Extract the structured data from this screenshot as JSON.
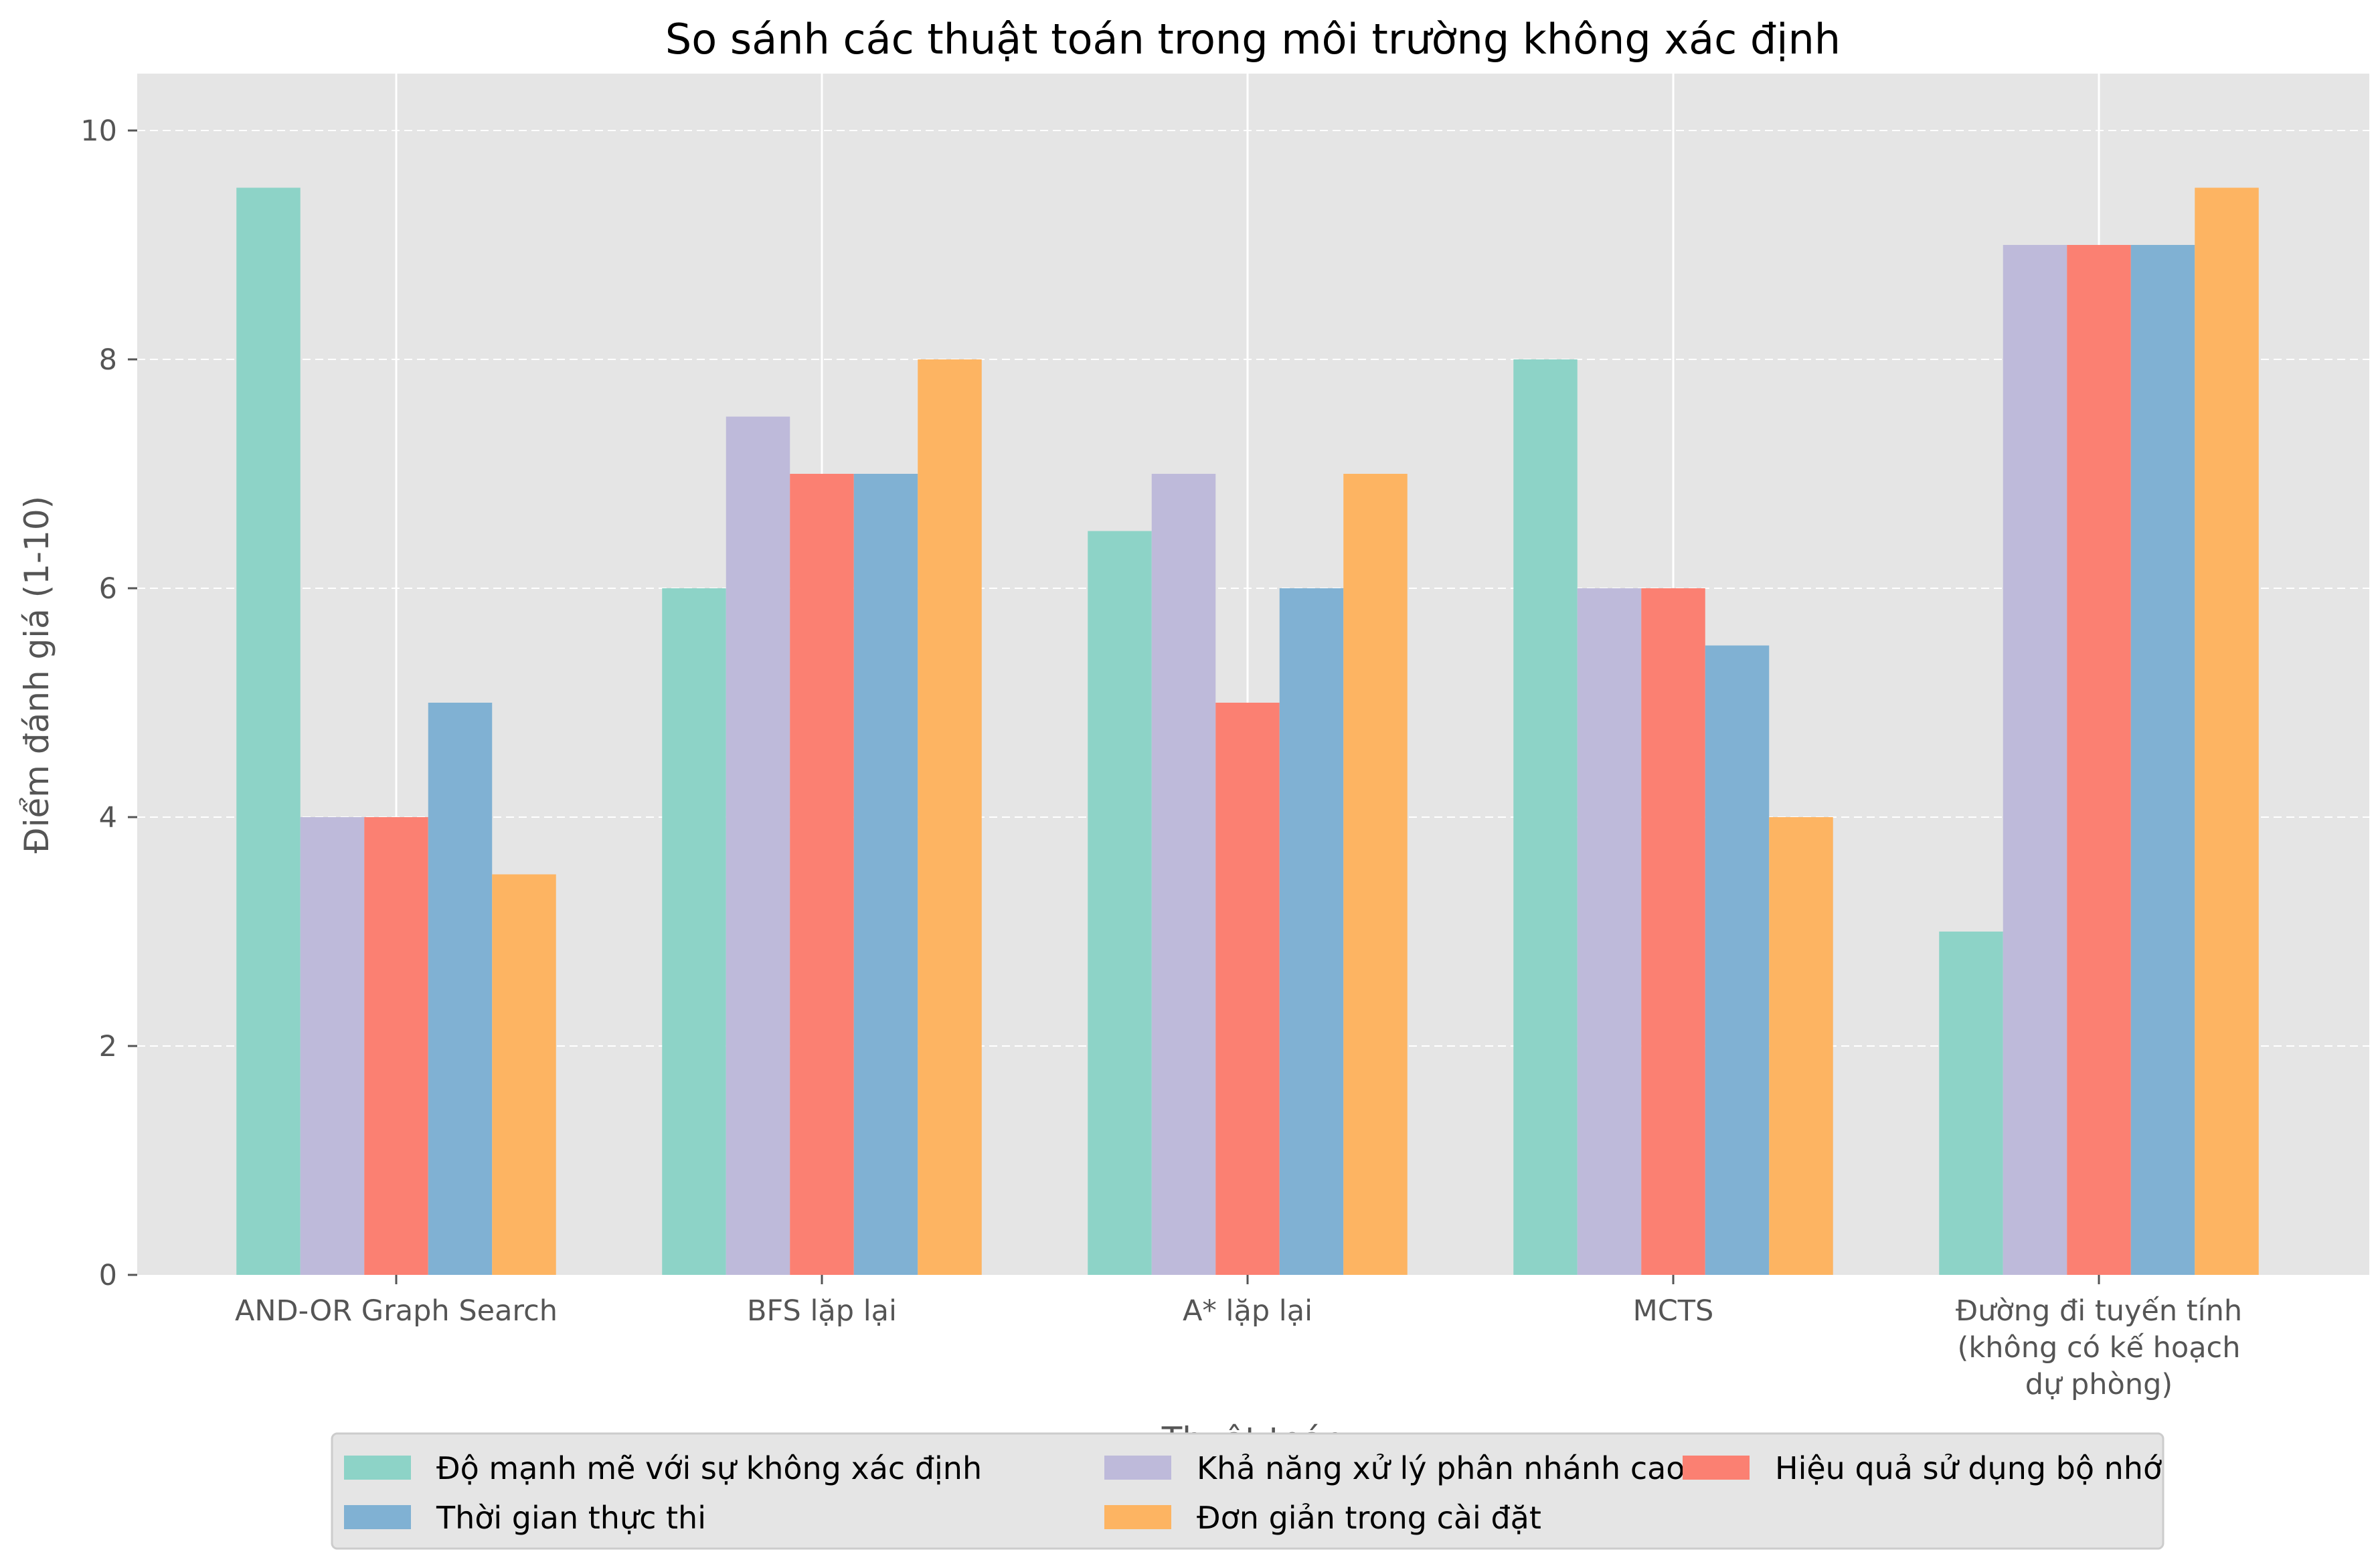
{
  "chart_data": {
    "type": "bar",
    "title": "So sánh các thuật toán trong môi trường không xác định",
    "xlabel": "Thuật toán",
    "ylabel": "Điểm đánh giá (1-10)",
    "ylim": [
      0,
      10.5
    ],
    "yticks": [
      0,
      2,
      4,
      6,
      8,
      10
    ],
    "grid": true,
    "legend_position": "bottom-center",
    "categories": [
      "AND-OR Graph Search",
      "BFS lặp lại",
      "A* lặp lại",
      "MCTS",
      "Đường đi tuyến tính (không có kế hoạch dự phòng)"
    ],
    "category_lines": [
      [
        "AND-OR Graph Search"
      ],
      [
        "BFS lặp lại"
      ],
      [
        "A* lặp lại"
      ],
      [
        "MCTS"
      ],
      [
        "Đường đi tuyến tính",
        "(không có kế hoạch",
        "dự phòng)"
      ]
    ],
    "series": [
      {
        "name": "Độ mạnh mẽ với sự không xác định",
        "color": "#8dd3c7",
        "values": [
          9.5,
          6,
          6.5,
          8,
          3
        ]
      },
      {
        "name": "Khả năng xử lý phân nhánh cao",
        "color": "#bebada",
        "values": [
          4,
          7.5,
          7,
          6,
          9
        ]
      },
      {
        "name": "Hiệu quả sử dụng bộ nhớ",
        "color": "#fb8072",
        "values": [
          4,
          7,
          5,
          6,
          9
        ]
      },
      {
        "name": "Thời gian thực thi",
        "color": "#80b1d3",
        "values": [
          5,
          7,
          6,
          5.5,
          9
        ]
      },
      {
        "name": "Đơn giản trong cài đặt",
        "color": "#fdb462",
        "values": [
          3.5,
          8,
          7,
          4,
          9.5
        ]
      }
    ],
    "colors": {
      "plot_background": "#e5e5e5",
      "grid": "#ffffff",
      "legend_background": "#e5e5e5"
    }
  }
}
